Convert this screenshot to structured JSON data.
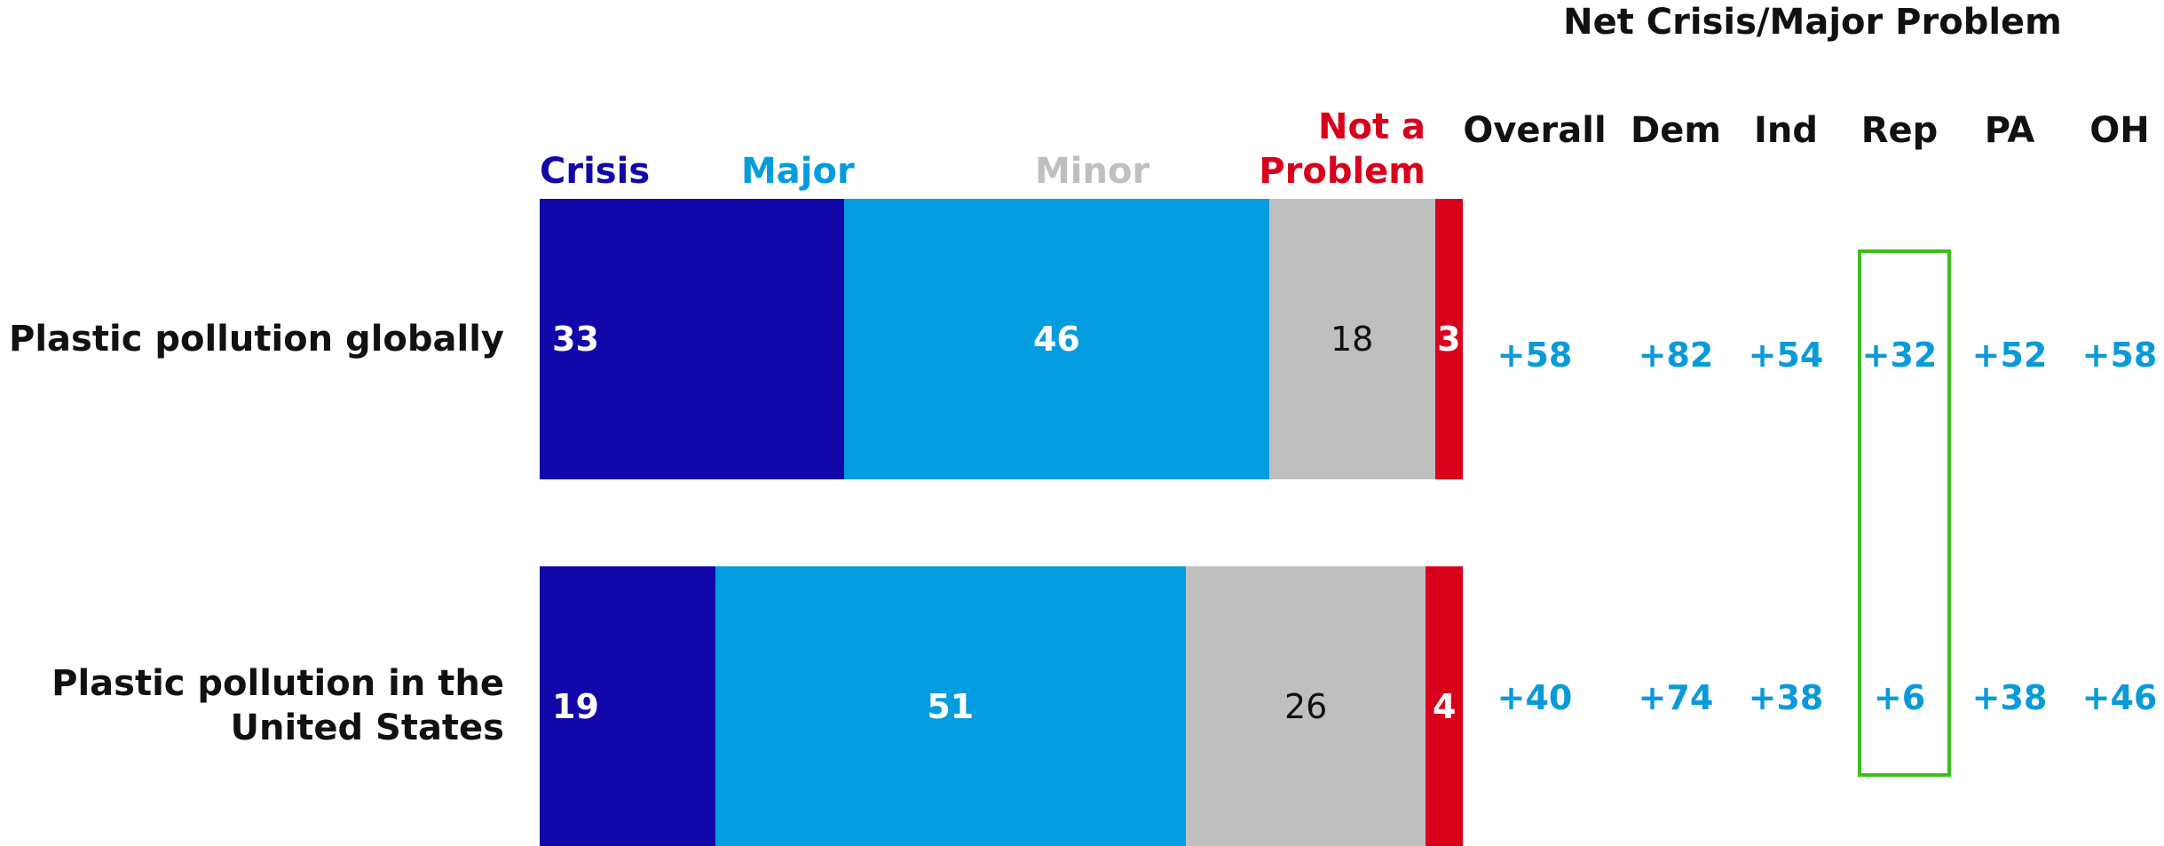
{
  "chart_data": {
    "type": "stacked-bar-horizontal",
    "categories": [
      "Plastic pollution globally",
      "Plastic pollution in the United States"
    ],
    "series": [
      {
        "name": "Crisis",
        "color": "#1207a8",
        "values": [
          33,
          19
        ]
      },
      {
        "name": "Major",
        "color": "#039ddf",
        "values": [
          46,
          51
        ]
      },
      {
        "name": "Minor",
        "color": "#bfbfbf",
        "values": [
          18,
          26
        ]
      },
      {
        "name": "Not a Problem",
        "color": "#d9001b",
        "values": [
          3,
          4
        ]
      }
    ],
    "xlim": [
      0,
      100
    ]
  },
  "net_table": {
    "title": "Net Crisis/Major Problem",
    "columns": [
      "Overall",
      "Dem",
      "Ind",
      "Rep",
      "PA",
      "OH"
    ],
    "rows": [
      [
        "+58",
        "+82",
        "+54",
        "+32",
        "+52",
        "+58"
      ],
      [
        "+40",
        "+74",
        "+38",
        "+6",
        "+38",
        "+46"
      ]
    ]
  }
}
